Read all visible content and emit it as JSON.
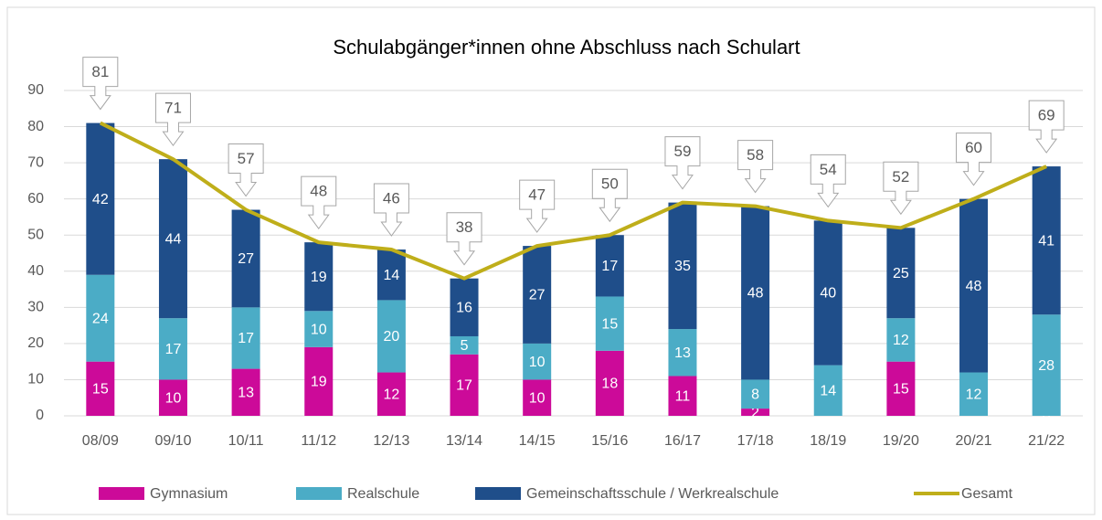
{
  "chart_data": {
    "type": "stacked-bar-line",
    "title": "Schulabgänger*innen ohne Abschluss nach Schulart",
    "categories": [
      "08/09",
      "09/10",
      "10/11",
      "11/12",
      "12/13",
      "13/14",
      "14/15",
      "15/16",
      "16/17",
      "17/18",
      "18/19",
      "19/20",
      "20/21",
      "21/22"
    ],
    "series": [
      {
        "name": "Gymnasium",
        "color": "#cc0a99",
        "type": "bar",
        "values": [
          15,
          10,
          13,
          19,
          12,
          17,
          10,
          18,
          11,
          2,
          null,
          15,
          null,
          0
        ]
      },
      {
        "name": "Realschule",
        "color": "#4bacc6",
        "type": "bar",
        "values": [
          24,
          17,
          17,
          10,
          20,
          5,
          10,
          15,
          13,
          8,
          14,
          12,
          12,
          28
        ]
      },
      {
        "name": "Gemeinschaftsschule / Werkrealschule",
        "color": "#1f4e8a",
        "type": "bar",
        "values": [
          42,
          44,
          27,
          19,
          14,
          16,
          27,
          17,
          35,
          48,
          40,
          25,
          48,
          41
        ]
      },
      {
        "name": "Gesamt",
        "color": "#bfae1a",
        "type": "line",
        "values": [
          81,
          71,
          57,
          48,
          46,
          38,
          47,
          50,
          59,
          58,
          54,
          52,
          60,
          69
        ]
      }
    ],
    "ylim": [
      0,
      90
    ],
    "yticks": [
      0,
      10,
      20,
      30,
      40,
      50,
      60,
      70,
      80,
      90
    ],
    "grid": true,
    "legend": "bottom"
  }
}
